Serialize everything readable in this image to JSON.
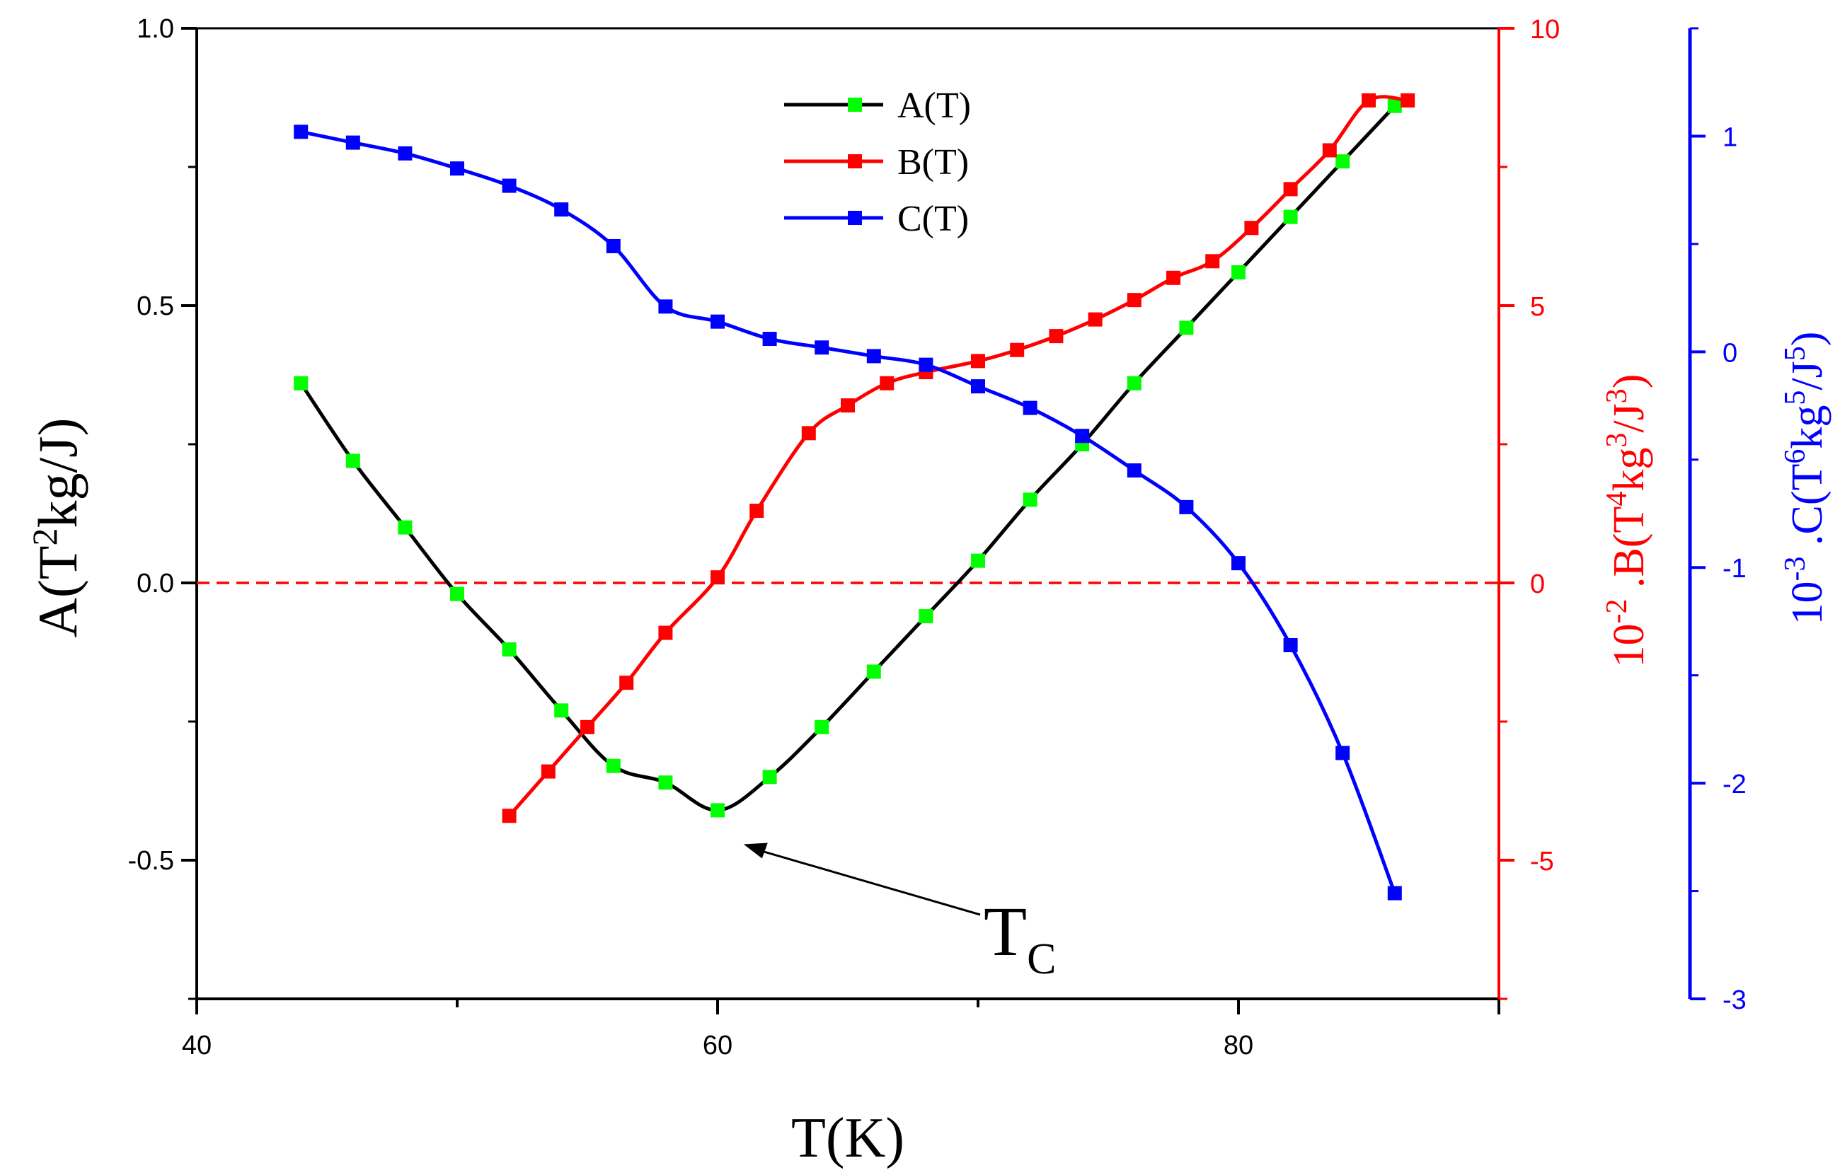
{
  "chart_data": {
    "type": "line",
    "x": {
      "label": "T(K)",
      "range": [
        40,
        90
      ],
      "ticks": [
        40,
        60,
        80
      ]
    },
    "axes": [
      {
        "id": "A",
        "label_main": "A(T",
        "label_sup": "2",
        "label_rest": "kg/J)",
        "color": "#000000",
        "range": [
          -0.75,
          1.0
        ],
        "ticks": [
          -0.5,
          0.0,
          0.5,
          1.0
        ],
        "tick_labels": [
          "-0.5",
          "0.0",
          "0.5",
          "1.0"
        ]
      },
      {
        "id": "B",
        "label_prefix": "10",
        "label_prefix_sup": "-2",
        "label_main": " .B(T",
        "label_sup1": "4",
        "label_mid": "kg",
        "label_sup2": "3",
        "label_rest": "/J",
        "label_sup3": "3",
        "label_close": ")",
        "color": "#ff0000",
        "range": [
          -7.5,
          10
        ],
        "ticks": [
          -5,
          0,
          5,
          10
        ],
        "tick_labels": [
          "-5",
          "0",
          "5",
          "10"
        ]
      },
      {
        "id": "C",
        "label_prefix": "10",
        "label_prefix_sup": "-3",
        "label_main": " .C(T",
        "label_sup1": "6",
        "label_mid": "kg",
        "label_sup2": "5",
        "label_rest": "/J",
        "label_sup3": "5",
        "label_close": ")",
        "color": "#0000ff",
        "range": [
          -3,
          1.5
        ],
        "ticks": [
          -3,
          -2,
          -1,
          0,
          1
        ],
        "tick_labels": [
          "-3",
          "-2",
          "-1",
          "0",
          "1"
        ]
      }
    ],
    "series": [
      {
        "name": "A(T)",
        "axis": "A",
        "line_color": "#000000",
        "marker_color": "#00ff00",
        "x": [
          44,
          46,
          48,
          50,
          52,
          54,
          56,
          58,
          60,
          62,
          64,
          66,
          68,
          70,
          72,
          74,
          76,
          78,
          80,
          82,
          84,
          86
        ],
        "values": [
          0.36,
          0.22,
          0.1,
          -0.02,
          -0.12,
          -0.23,
          -0.33,
          -0.36,
          -0.41,
          -0.35,
          -0.26,
          -0.16,
          -0.06,
          0.04,
          0.15,
          0.25,
          0.36,
          0.46,
          0.56,
          0.66,
          0.76,
          0.86
        ]
      },
      {
        "name": "B(T)",
        "axis": "B",
        "line_color": "#ff0000",
        "marker_color": "#ff0000",
        "x": [
          52,
          53.5,
          55,
          56.5,
          58,
          60,
          61.5,
          63.5,
          65,
          66.5,
          68,
          70,
          71.5,
          73,
          74.5,
          76,
          77.5,
          79,
          80.5,
          82,
          83.5,
          85,
          86.5
        ],
        "values": [
          -4.2,
          -3.4,
          -2.6,
          -1.8,
          -0.9,
          0.1,
          1.3,
          2.7,
          3.2,
          3.6,
          3.8,
          4.0,
          4.2,
          4.45,
          4.75,
          5.1,
          5.5,
          5.8,
          6.4,
          7.1,
          7.8,
          8.7,
          8.7
        ]
      },
      {
        "name": "C(T)",
        "axis": "C",
        "line_color": "#0000ff",
        "marker_color": "#0000ff",
        "x": [
          44,
          46,
          48,
          50,
          52,
          54,
          56,
          58,
          60,
          62,
          64,
          66,
          68,
          70,
          72,
          74,
          76,
          78,
          80,
          82,
          84,
          86
        ],
        "values": [
          1.02,
          0.97,
          0.92,
          0.85,
          0.77,
          0.66,
          0.49,
          0.21,
          0.14,
          0.06,
          0.02,
          -0.02,
          -0.06,
          -0.16,
          -0.26,
          -0.39,
          -0.55,
          -0.72,
          -0.98,
          -1.36,
          -1.86,
          -2.51
        ]
      }
    ],
    "reference_line": {
      "axis": "A",
      "value": 0.0,
      "color": "#ff0000",
      "style": "dashed"
    },
    "annotation": {
      "text": "T",
      "sub": "C",
      "points_to": {
        "x": 61,
        "y": -0.41
      }
    },
    "legend": {
      "position": "top-center",
      "items": [
        "A(T)",
        "B(T)",
        "C(T)"
      ]
    }
  }
}
